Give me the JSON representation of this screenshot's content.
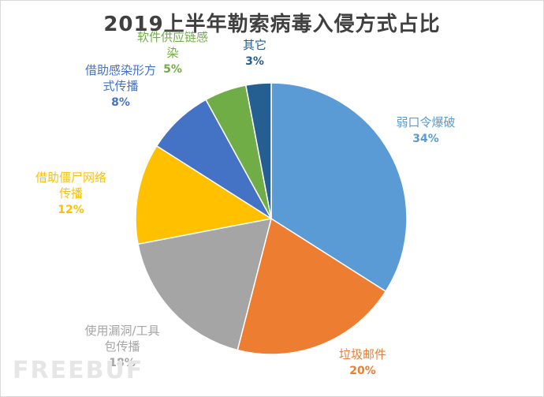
{
  "chart_data": {
    "type": "pie",
    "title": "2019上半年勒索病毒入侵方式占比",
    "slices": [
      {
        "name": "弱口令爆破",
        "value": 34,
        "pct": "34%",
        "color": "#5b9bd5"
      },
      {
        "name": "垃圾邮件",
        "value": 20,
        "pct": "20%",
        "color": "#ed7d31"
      },
      {
        "name": "使用漏洞/工具包传播",
        "value": 18,
        "pct": "18%",
        "color": "#a5a5a5"
      },
      {
        "name": "借助僵尸网络传播",
        "value": 12,
        "pct": "12%",
        "color": "#ffc000"
      },
      {
        "name": "借助感染形方式传播",
        "value": 8,
        "pct": "8%",
        "color": "#4472c4"
      },
      {
        "name": "软件供应链感染",
        "value": 5,
        "pct": "5%",
        "color": "#70ad47"
      },
      {
        "name": "其它",
        "value": 3,
        "pct": "3%",
        "color": "#255e91"
      }
    ]
  },
  "watermark": "FREEBUF"
}
